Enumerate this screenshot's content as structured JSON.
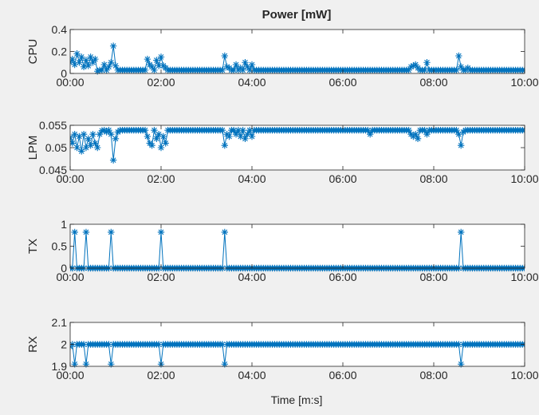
{
  "figure": {
    "title": "Power [mW]",
    "xlabel": "Time [m:s]",
    "series_color": "#0072bd",
    "axes_background": "#ffffff",
    "figure_background": "#f0f0f0"
  },
  "chart_data": [
    {
      "type": "line",
      "marker": "asterisk",
      "ylabel": "CPU",
      "x_unit": "minutes",
      "xlim": [
        0,
        10
      ],
      "ylim": [
        0,
        0.4
      ],
      "x_ticks": [
        0,
        2,
        4,
        6,
        8,
        10
      ],
      "x_tick_labels": [
        "00:00",
        "02:00",
        "04:00",
        "06:00",
        "08:00",
        "10:00"
      ],
      "y_ticks": [
        0,
        0.2,
        0.4
      ],
      "y_tick_labels": [
        "0",
        "0.2",
        "0.4"
      ],
      "baseline": 0.03,
      "sample_step": 0.05,
      "spikes": [
        [
          0.0,
          0.1
        ],
        [
          0.05,
          0.13
        ],
        [
          0.1,
          0.08
        ],
        [
          0.15,
          0.18
        ],
        [
          0.2,
          0.1
        ],
        [
          0.25,
          0.15
        ],
        [
          0.3,
          0.06
        ],
        [
          0.35,
          0.12
        ],
        [
          0.4,
          0.07
        ],
        [
          0.45,
          0.15
        ],
        [
          0.5,
          0.1
        ],
        [
          0.55,
          0.13
        ],
        [
          0.6,
          0.02
        ],
        [
          0.75,
          0.08
        ],
        [
          0.85,
          0.06
        ],
        [
          0.9,
          0.1
        ],
        [
          0.95,
          0.25
        ],
        [
          1.0,
          0.07
        ],
        [
          1.7,
          0.13
        ],
        [
          1.75,
          0.08
        ],
        [
          1.8,
          0.06
        ],
        [
          1.9,
          0.12
        ],
        [
          1.95,
          0.07
        ],
        [
          2.0,
          0.15
        ],
        [
          2.05,
          0.07
        ],
        [
          2.1,
          0.05
        ],
        [
          3.4,
          0.16
        ],
        [
          3.45,
          0.06
        ],
        [
          3.5,
          0.05
        ],
        [
          3.65,
          0.08
        ],
        [
          3.75,
          0.05
        ],
        [
          3.85,
          0.1
        ],
        [
          3.9,
          0.06
        ],
        [
          4.0,
          0.08
        ],
        [
          7.5,
          0.06
        ],
        [
          7.55,
          0.07
        ],
        [
          7.6,
          0.08
        ],
        [
          7.65,
          0.05
        ],
        [
          7.85,
          0.1
        ],
        [
          8.55,
          0.16
        ],
        [
          8.6,
          0.06
        ],
        [
          8.75,
          0.05
        ]
      ]
    },
    {
      "type": "line",
      "marker": "asterisk",
      "ylabel": "LPM",
      "x_unit": "minutes",
      "xlim": [
        0,
        10
      ],
      "ylim": [
        0.045,
        0.055
      ],
      "x_ticks": [
        0,
        2,
        4,
        6,
        8,
        10
      ],
      "x_tick_labels": [
        "00:00",
        "02:00",
        "04:00",
        "06:00",
        "08:00",
        "10:00"
      ],
      "y_ticks": [
        0.045,
        0.05,
        0.055
      ],
      "y_tick_labels": [
        "0.045",
        "0.05",
        "0.055"
      ],
      "baseline": 0.0539,
      "sample_step": 0.05,
      "spikes": [
        [
          0.0,
          0.0523
        ],
        [
          0.05,
          0.051
        ],
        [
          0.1,
          0.053
        ],
        [
          0.15,
          0.05
        ],
        [
          0.2,
          0.0525
        ],
        [
          0.25,
          0.0492
        ],
        [
          0.3,
          0.053
        ],
        [
          0.35,
          0.05
        ],
        [
          0.4,
          0.052
        ],
        [
          0.45,
          0.0505
        ],
        [
          0.5,
          0.053
        ],
        [
          0.55,
          0.051
        ],
        [
          0.6,
          0.05
        ],
        [
          0.65,
          0.053
        ],
        [
          0.7,
          0.0538
        ],
        [
          0.8,
          0.0535
        ],
        [
          0.9,
          0.053
        ],
        [
          0.95,
          0.0472
        ],
        [
          1.0,
          0.052
        ],
        [
          1.05,
          0.0535
        ],
        [
          1.7,
          0.0525
        ],
        [
          1.75,
          0.051
        ],
        [
          1.8,
          0.0505
        ],
        [
          1.9,
          0.052
        ],
        [
          1.95,
          0.053
        ],
        [
          2.0,
          0.05
        ],
        [
          2.05,
          0.0525
        ],
        [
          2.1,
          0.051
        ],
        [
          3.4,
          0.0505
        ],
        [
          3.45,
          0.053
        ],
        [
          3.5,
          0.0525
        ],
        [
          3.65,
          0.053
        ],
        [
          3.75,
          0.0525
        ],
        [
          3.85,
          0.052
        ],
        [
          3.9,
          0.053
        ],
        [
          4.0,
          0.0525
        ],
        [
          6.6,
          0.053
        ],
        [
          7.5,
          0.053
        ],
        [
          7.55,
          0.0525
        ],
        [
          7.6,
          0.053
        ],
        [
          7.65,
          0.052
        ],
        [
          7.85,
          0.053
        ],
        [
          8.55,
          0.053
        ],
        [
          8.6,
          0.0505
        ],
        [
          8.65,
          0.0535
        ]
      ]
    },
    {
      "type": "line",
      "marker": "asterisk",
      "ylabel": "TX",
      "x_unit": "minutes",
      "xlim": [
        0,
        10
      ],
      "ylim": [
        0,
        1
      ],
      "x_ticks": [
        0,
        2,
        4,
        6,
        8,
        10
      ],
      "x_tick_labels": [
        "00:00",
        "02:00",
        "04:00",
        "06:00",
        "08:00",
        "10:00"
      ],
      "y_ticks": [
        0,
        0.5,
        1
      ],
      "y_tick_labels": [
        "0",
        "0.5",
        "1"
      ],
      "baseline": 0,
      "sample_step": 0.05,
      "spikes": [
        [
          0.1,
          0.82
        ],
        [
          0.35,
          0.82
        ],
        [
          0.9,
          0.82
        ],
        [
          2.0,
          0.82
        ],
        [
          3.4,
          0.82
        ],
        [
          8.6,
          0.82
        ]
      ]
    },
    {
      "type": "line",
      "marker": "asterisk",
      "ylabel": "RX",
      "x_unit": "minutes",
      "xlim": [
        0,
        10
      ],
      "ylim": [
        1.9,
        2.1
      ],
      "x_ticks": [
        0,
        2,
        4,
        6,
        8,
        10
      ],
      "x_tick_labels": [
        "00:00",
        "02:00",
        "04:00",
        "06:00",
        "08:00",
        "10:00"
      ],
      "y_ticks": [
        1.9,
        2,
        2.1
      ],
      "y_tick_labels": [
        "1.9",
        "2",
        "2.1"
      ],
      "baseline": 2.0,
      "sample_step": 0.05,
      "spikes": [
        [
          0.0,
          1.99
        ],
        [
          0.1,
          1.91
        ],
        [
          0.2,
          2.0
        ],
        [
          0.35,
          1.91
        ],
        [
          0.9,
          1.91
        ],
        [
          2.0,
          1.91
        ],
        [
          3.4,
          1.91
        ],
        [
          8.6,
          1.91
        ]
      ]
    }
  ]
}
